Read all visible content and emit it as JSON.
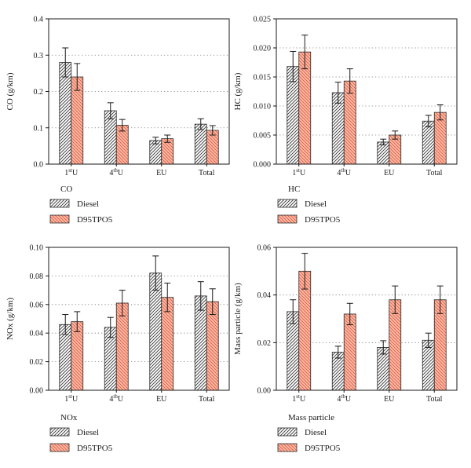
{
  "chart_data": [
    {
      "type": "bar",
      "ylabel": "CO (g/km)",
      "legend_title": "CO",
      "categories": [
        "1stU",
        "4thU",
        "EU",
        "Total"
      ],
      "ylim": [
        0,
        0.4
      ],
      "yticks": [
        0.0,
        0.1,
        0.2,
        0.3,
        0.4
      ],
      "ytick_labels": [
        "0.0",
        "0.1",
        "0.2",
        "0.3",
        "0.4"
      ],
      "grid": "dotted horizontal",
      "series": [
        {
          "name": "Diesel",
          "values": [
            0.28,
            0.147,
            0.065,
            0.11
          ],
          "errors": [
            0.04,
            0.022,
            0.009,
            0.015
          ]
        },
        {
          "name": "D95TPO5",
          "values": [
            0.24,
            0.107,
            0.07,
            0.093
          ],
          "errors": [
            0.037,
            0.016,
            0.01,
            0.013
          ]
        }
      ]
    },
    {
      "type": "bar",
      "ylabel": "HC (g/km)",
      "legend_title": "HC",
      "categories": [
        "1stU",
        "4thU",
        "EU",
        "Total"
      ],
      "ylim": [
        0,
        0.025
      ],
      "yticks": [
        0.0,
        0.005,
        0.01,
        0.015,
        0.02,
        0.025
      ],
      "ytick_labels": [
        "0.000",
        "0.005",
        "0.010",
        "0.015",
        "0.020",
        "0.025"
      ],
      "grid": "dotted horizontal",
      "series": [
        {
          "name": "Diesel",
          "values": [
            0.0168,
            0.0123,
            0.0038,
            0.0074
          ],
          "errors": [
            0.0026,
            0.0018,
            0.0005,
            0.001
          ]
        },
        {
          "name": "D95TPO5",
          "values": [
            0.0193,
            0.0143,
            0.005,
            0.0089
          ],
          "errors": [
            0.0029,
            0.0021,
            0.0007,
            0.0013
          ]
        }
      ]
    },
    {
      "type": "bar",
      "ylabel": "NOx (g/km)",
      "legend_title": "NOx",
      "categories": [
        "1stU",
        "4thU",
        "EU",
        "Total"
      ],
      "ylim": [
        0,
        0.1
      ],
      "yticks": [
        0.0,
        0.02,
        0.04,
        0.06,
        0.08,
        0.1
      ],
      "ytick_labels": [
        "0.00",
        "0.02",
        "0.04",
        "0.06",
        "0.08",
        "0.10"
      ],
      "grid": "dotted horizontal",
      "series": [
        {
          "name": "Diesel",
          "values": [
            0.046,
            0.044,
            0.082,
            0.066
          ],
          "errors": [
            0.007,
            0.007,
            0.012,
            0.01
          ]
        },
        {
          "name": "D95TPO5",
          "values": [
            0.048,
            0.061,
            0.065,
            0.062
          ],
          "errors": [
            0.007,
            0.009,
            0.01,
            0.009
          ]
        }
      ]
    },
    {
      "type": "bar",
      "ylabel": "Mass particle (g/km)",
      "legend_title": "Mass particle",
      "categories": [
        "1stU",
        "4thU",
        "EU",
        "Total"
      ],
      "ylim": [
        0,
        0.06
      ],
      "yticks": [
        0.0,
        0.02,
        0.04,
        0.06
      ],
      "ytick_labels": [
        "0.00",
        "0.02",
        "0.04",
        "0.06"
      ],
      "grid": "dotted horizontal",
      "series": [
        {
          "name": "Diesel",
          "values": [
            0.033,
            0.016,
            0.018,
            0.021
          ],
          "errors": [
            0.005,
            0.0025,
            0.0028,
            0.003
          ]
        },
        {
          "name": "D95TPO5",
          "values": [
            0.05,
            0.032,
            0.038,
            0.038
          ],
          "errors": [
            0.0075,
            0.0045,
            0.0058,
            0.0058
          ]
        }
      ]
    }
  ],
  "colors": {
    "diesel_fill": "#ffffff",
    "diesel_hatch": "#333333",
    "d95_fill": "#f7b9a6",
    "d95_hatch": "#e0472a",
    "axis": "#1a1a1a",
    "grid": "#777777"
  }
}
